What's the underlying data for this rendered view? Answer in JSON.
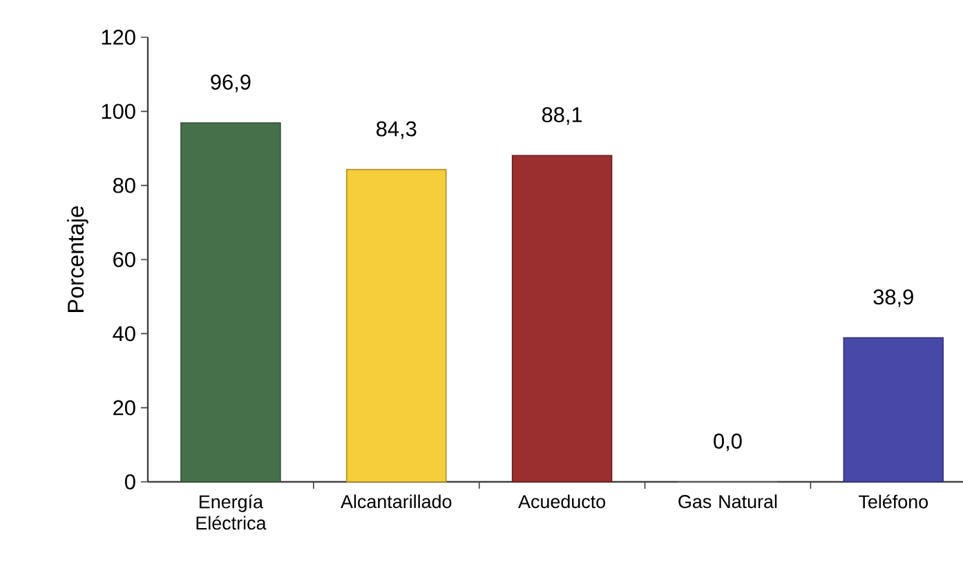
{
  "chart_data": {
    "type": "bar",
    "ylabel": "Porcentaje",
    "categories": [
      "Energía Eléctrica",
      "Alcantarillado",
      "Acueducto",
      "Gas Natural",
      "Teléfono"
    ],
    "values": [
      96.9,
      84.3,
      88.1,
      0.0,
      38.9
    ],
    "value_labels": [
      "96,9",
      "84,3",
      "88,1",
      "0,0",
      "38,9"
    ],
    "colors": [
      "#46704a",
      "#f6cd3a",
      "#9b2e2e",
      "#8a8a8a",
      "#4848a8"
    ],
    "ylim": [
      0,
      120
    ],
    "yticks": [
      0,
      20,
      40,
      60,
      80,
      100,
      120
    ]
  }
}
